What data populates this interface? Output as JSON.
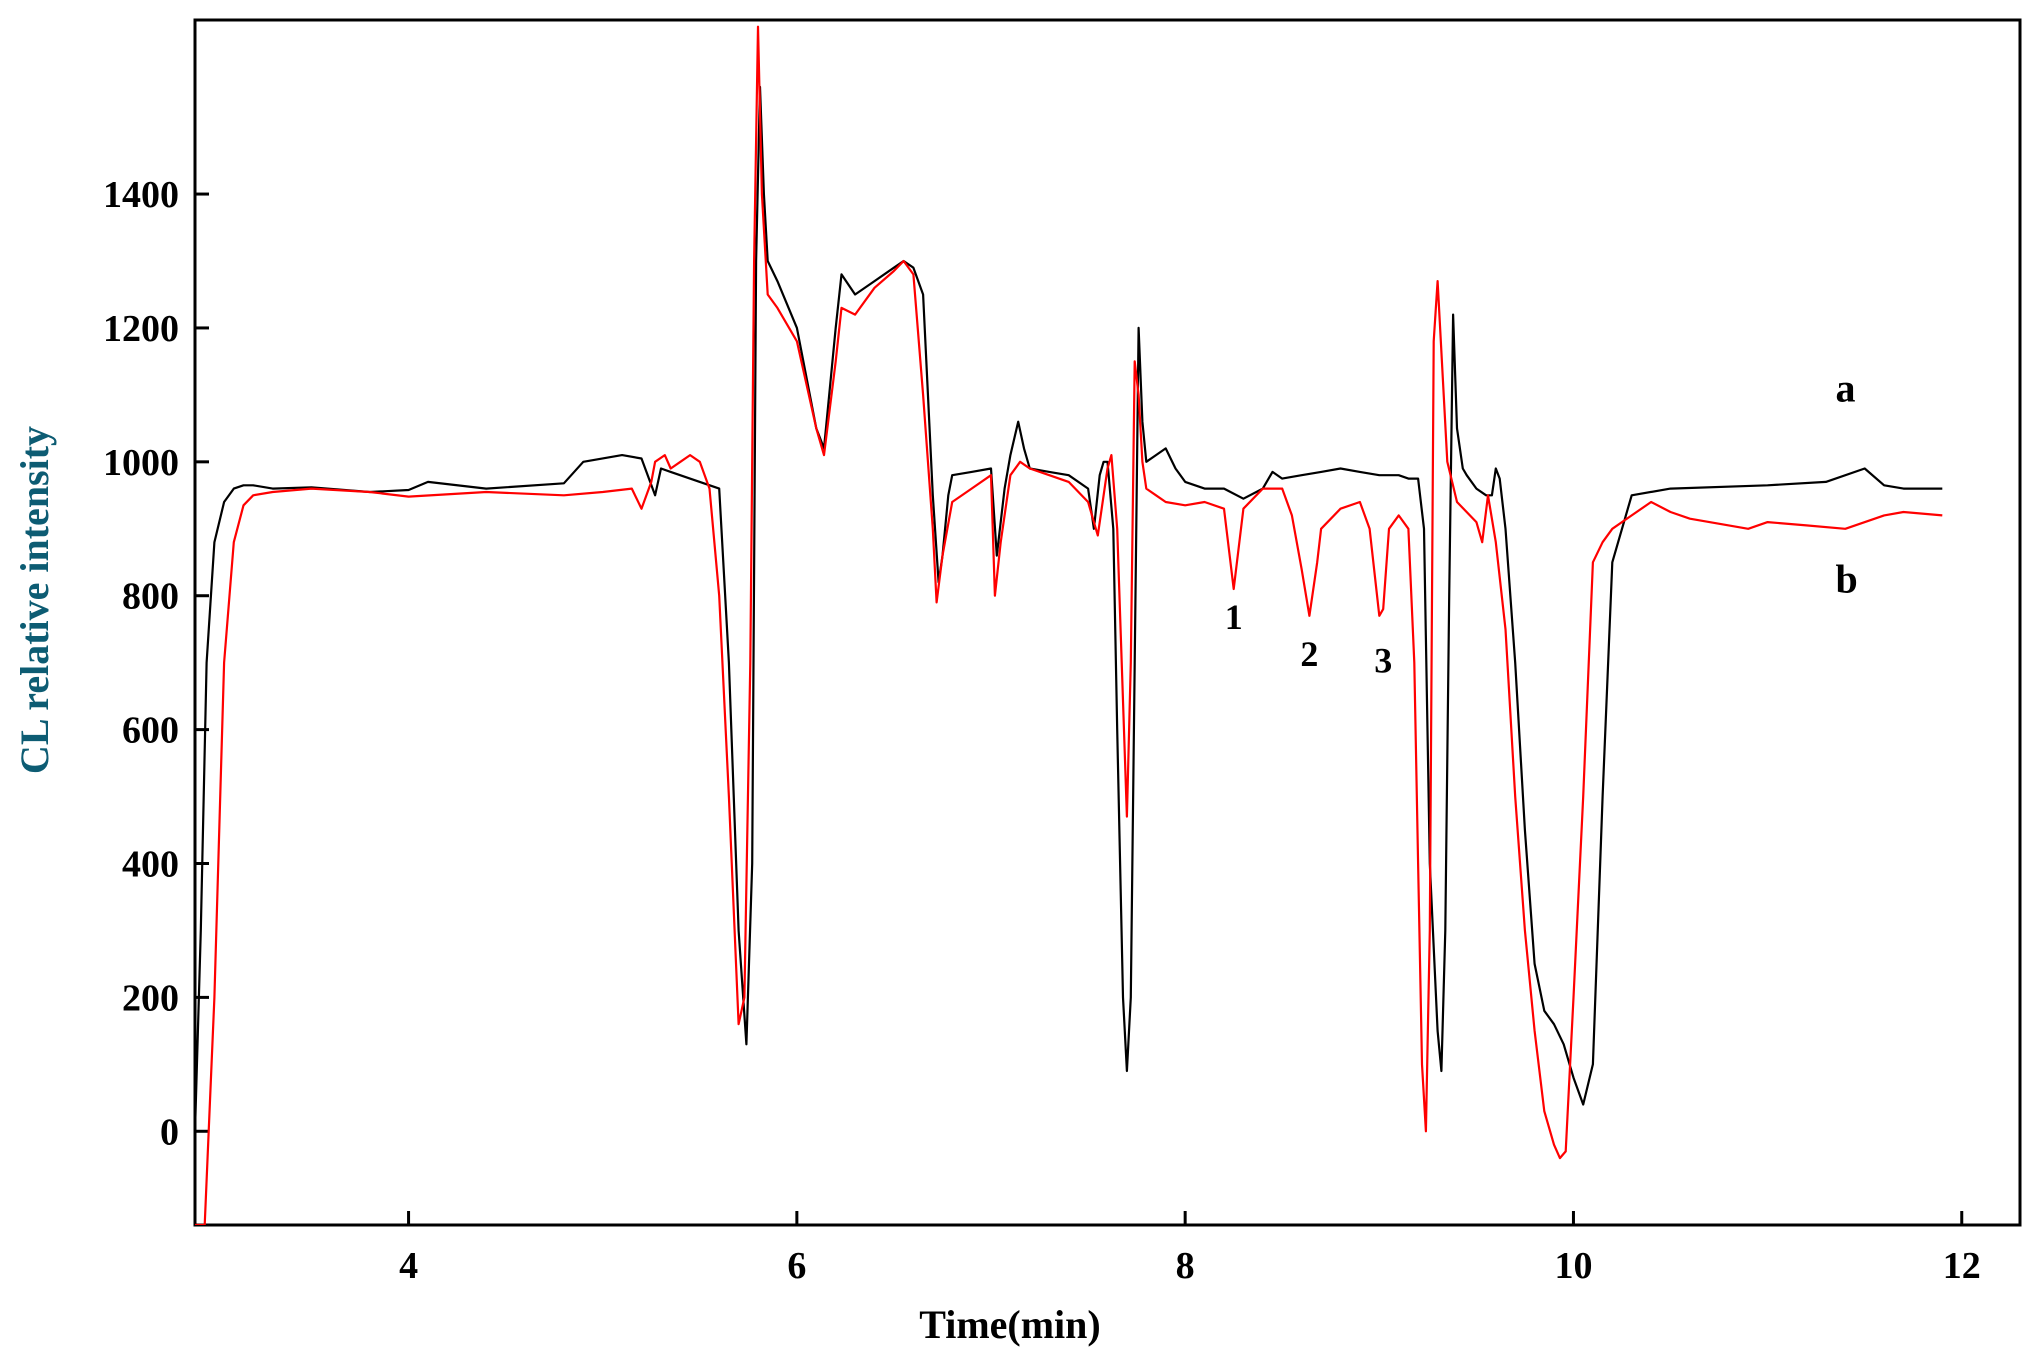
{
  "chart_data": {
    "type": "line",
    "title": "",
    "xlabel": "Time(min)",
    "ylabel": "CL relative intensity",
    "xlim": [
      2.9,
      12.3
    ],
    "ylim": [
      -140,
      1660
    ],
    "xticks": [
      4,
      6,
      8,
      10,
      12
    ],
    "yticks": [
      0,
      200,
      400,
      600,
      800,
      1000,
      1200,
      1400
    ],
    "grid": false,
    "legend": "inline labels at right end",
    "annotations": [
      {
        "text": "1",
        "x": 8.25,
        "y": 750
      },
      {
        "text": "2",
        "x": 8.64,
        "y": 695
      },
      {
        "text": "3",
        "x": 9.02,
        "y": 685
      }
    ],
    "series": [
      {
        "name": "a",
        "color": "#000000",
        "label_at": {
          "x": 11.35,
          "y": 1090
        },
        "x": [
          2.9,
          2.93,
          2.96,
          3.0,
          3.05,
          3.1,
          3.15,
          3.2,
          3.3,
          3.5,
          3.8,
          4.0,
          4.1,
          4.4,
          4.8,
          4.9,
          5.1,
          5.2,
          5.27,
          5.3,
          5.35,
          5.5,
          5.6,
          5.65,
          5.7,
          5.74,
          5.77,
          5.79,
          5.81,
          5.83,
          5.85,
          5.9,
          6.0,
          6.1,
          6.14,
          6.2,
          6.23,
          6.3,
          6.4,
          6.5,
          6.55,
          6.6,
          6.65,
          6.7,
          6.73,
          6.75,
          6.78,
          6.8,
          6.9,
          7.0,
          7.03,
          7.07,
          7.1,
          7.14,
          7.17,
          7.2,
          7.3,
          7.4,
          7.5,
          7.53,
          7.56,
          7.58,
          7.6,
          7.63,
          7.65,
          7.68,
          7.7,
          7.72,
          7.74,
          7.76,
          7.78,
          7.8,
          7.85,
          7.9,
          7.95,
          8.0,
          8.1,
          8.2,
          8.3,
          8.4,
          8.45,
          8.5,
          8.6,
          8.7,
          8.8,
          8.9,
          9.0,
          9.1,
          9.15,
          9.2,
          9.23,
          9.26,
          9.3,
          9.32,
          9.34,
          9.36,
          9.38,
          9.4,
          9.43,
          9.45,
          9.5,
          9.55,
          9.58,
          9.6,
          9.62,
          9.65,
          9.7,
          9.75,
          9.8,
          9.85,
          9.9,
          9.95,
          10.0,
          10.05,
          10.1,
          10.15,
          10.2,
          10.3,
          10.5,
          11.0,
          11.3,
          11.5,
          11.6,
          11.7,
          11.9
        ],
        "values": [
          0,
          300,
          700,
          880,
          940,
          960,
          965,
          965,
          960,
          962,
          955,
          958,
          970,
          960,
          968,
          1000,
          1010,
          1005,
          950,
          990,
          985,
          970,
          960,
          700,
          300,
          130,
          400,
          1300,
          1560,
          1400,
          1300,
          1270,
          1200,
          1050,
          1020,
          1200,
          1280,
          1250,
          1270,
          1290,
          1300,
          1290,
          1250,
          950,
          820,
          860,
          950,
          980,
          985,
          990,
          860,
          960,
          1010,
          1060,
          1020,
          990,
          985,
          980,
          960,
          900,
          980,
          1000,
          1000,
          900,
          600,
          200,
          90,
          200,
          700,
          1200,
          1060,
          1000,
          1010,
          1020,
          990,
          970,
          960,
          960,
          945,
          960,
          985,
          975,
          980,
          985,
          990,
          985,
          980,
          980,
          975,
          975,
          900,
          400,
          150,
          90,
          300,
          800,
          1220,
          1050,
          990,
          980,
          960,
          950,
          950,
          990,
          975,
          900,
          700,
          450,
          250,
          180,
          160,
          130,
          80,
          40,
          100,
          500,
          850,
          950,
          960,
          965,
          970,
          990,
          965,
          960,
          960
        ]
      },
      {
        "name": "b",
        "color": "#ff0000",
        "label_at": {
          "x": 11.35,
          "y": 805
        },
        "x": [
          2.9,
          2.95,
          3.0,
          3.05,
          3.1,
          3.15,
          3.2,
          3.3,
          3.5,
          3.8,
          4.0,
          4.4,
          4.8,
          5.0,
          5.15,
          5.2,
          5.25,
          5.27,
          5.32,
          5.35,
          5.4,
          5.45,
          5.5,
          5.55,
          5.6,
          5.65,
          5.7,
          5.73,
          5.76,
          5.78,
          5.8,
          5.82,
          5.85,
          5.9,
          6.0,
          6.1,
          6.14,
          6.2,
          6.23,
          6.3,
          6.4,
          6.5,
          6.55,
          6.6,
          6.65,
          6.7,
          6.72,
          6.75,
          6.8,
          6.9,
          7.0,
          7.02,
          7.05,
          7.1,
          7.15,
          7.2,
          7.3,
          7.4,
          7.5,
          7.55,
          7.6,
          7.62,
          7.65,
          7.7,
          7.72,
          7.74,
          7.76,
          7.78,
          7.8,
          7.85,
          7.9,
          8.0,
          8.1,
          8.2,
          8.25,
          8.3,
          8.4,
          8.5,
          8.55,
          8.6,
          8.64,
          8.68,
          8.7,
          8.8,
          8.9,
          8.95,
          9.0,
          9.02,
          9.05,
          9.1,
          9.15,
          9.18,
          9.2,
          9.22,
          9.24,
          9.26,
          9.28,
          9.3,
          9.35,
          9.4,
          9.5,
          9.53,
          9.56,
          9.6,
          9.65,
          9.7,
          9.75,
          9.8,
          9.85,
          9.9,
          9.93,
          9.96,
          10.0,
          10.05,
          10.1,
          10.15,
          10.2,
          10.3,
          10.4,
          10.5,
          10.6,
          10.8,
          10.9,
          11.0,
          11.2,
          11.4,
          11.6,
          11.7,
          11.9
        ],
        "values": [
          -140,
          -140,
          200,
          700,
          880,
          935,
          950,
          955,
          960,
          955,
          948,
          955,
          950,
          955,
          960,
          930,
          970,
          1000,
          1010,
          990,
          1000,
          1010,
          1000,
          960,
          800,
          500,
          160,
          200,
          700,
          1300,
          1650,
          1400,
          1250,
          1230,
          1180,
          1050,
          1010,
          1150,
          1230,
          1220,
          1260,
          1285,
          1300,
          1280,
          1100,
          900,
          790,
          860,
          940,
          960,
          980,
          800,
          880,
          980,
          1000,
          990,
          980,
          970,
          940,
          890,
          990,
          1010,
          900,
          470,
          700,
          1150,
          1100,
          1000,
          960,
          950,
          940,
          935,
          940,
          930,
          810,
          930,
          960,
          960,
          920,
          840,
          770,
          850,
          900,
          930,
          940,
          900,
          770,
          780,
          900,
          920,
          900,
          700,
          400,
          100,
          0,
          300,
          1180,
          1270,
          1000,
          940,
          910,
          880,
          950,
          880,
          750,
          500,
          300,
          150,
          30,
          -20,
          -40,
          -30,
          200,
          500,
          850,
          880,
          900,
          920,
          940,
          925,
          915,
          905,
          900,
          910,
          905,
          900,
          920,
          925,
          920
        ]
      }
    ]
  }
}
